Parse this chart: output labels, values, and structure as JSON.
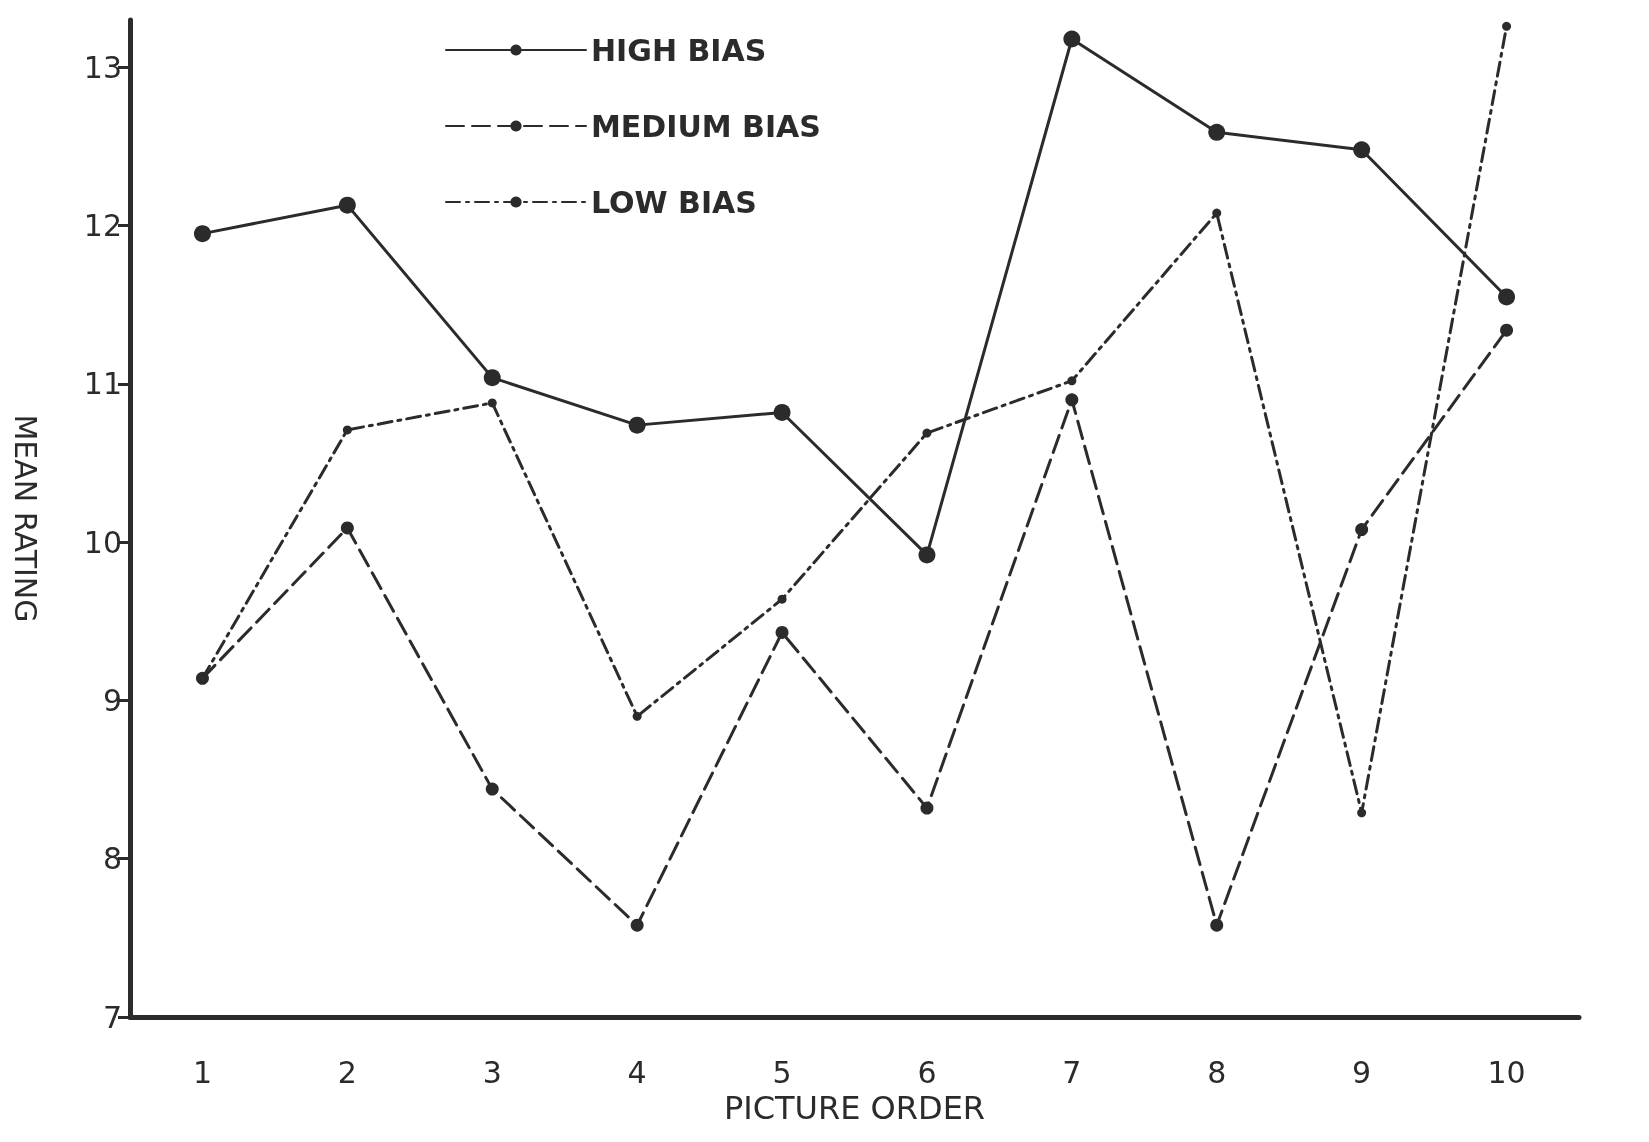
{
  "chart_data": {
    "type": "line",
    "xlabel": "PICTURE ORDER",
    "ylabel": "MEAN RATING",
    "categories": [
      "1",
      "2",
      "3",
      "4",
      "5",
      "6",
      "7",
      "8",
      "9",
      "10"
    ],
    "series": [
      {
        "name": "HIGH BIAS",
        "color": "#2b2b2b",
        "line_style": "solid",
        "values": [
          11.95,
          12.13,
          11.04,
          10.74,
          10.82,
          9.92,
          13.18,
          12.59,
          12.48,
          11.55
        ]
      },
      {
        "name": "MEDIUM BIAS",
        "color": "#2b2b2b",
        "line_style": "dashed",
        "values": [
          9.14,
          10.09,
          8.44,
          7.58,
          9.43,
          8.32,
          10.9,
          7.58,
          10.08,
          11.34
        ]
      },
      {
        "name": "LOW BIAS",
        "color": "#2b2b2b",
        "line_style": "dashdot",
        "values": [
          9.14,
          10.71,
          10.88,
          8.9,
          9.64,
          10.69,
          11.02,
          12.08,
          8.29,
          13.26
        ]
      }
    ],
    "ylim": [
      7,
      13.3
    ],
    "yticks": [
      7,
      8,
      9,
      10,
      11,
      12,
      13
    ],
    "grid": false,
    "legend": "top left",
    "marker": "circle"
  }
}
